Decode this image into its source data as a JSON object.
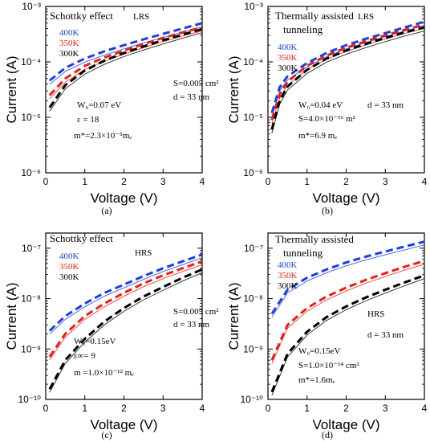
{
  "panels": [
    {
      "label": "(a)",
      "title": "Schottky effect",
      "state": "LRS",
      "xlabel": "Voltage (V)",
      "ylabel": "Current (A)",
      "legend": [
        {
          "text": "400K",
          "color": "#1f3fd6"
        },
        {
          "text": "350K",
          "color": "#e0221b"
        },
        {
          "text": "300K",
          "color": "#000000"
        }
      ],
      "params_top": [
        "S=0.005 cm²",
        "d = 33 nm"
      ],
      "params_bottom": [
        "W₀=0.07 eV",
        "ε = 18",
        "m*=2.3×10⁻⁵mₑ"
      ]
    },
    {
      "label": "(b)",
      "title": "Thermally assisted",
      "title2": "tunneling",
      "state": "LRS",
      "xlabel": "Voltage (V)",
      "ylabel": "Current (A)",
      "legend": [
        {
          "text": "400K",
          "color": "#1f3fd6"
        },
        {
          "text": "350K",
          "color": "#e0221b"
        },
        {
          "text": "300K",
          "color": "#000000"
        }
      ],
      "params_top": [
        "W₀=0.04 eV",
        "S=4.0×10⁻¹⁶ m²",
        "m*=6.9 mₑ"
      ],
      "params_bottom": [
        "d = 33 nm"
      ]
    },
    {
      "label": "(c)",
      "title": "Schottky effect",
      "state": "HRS",
      "xlabel": "Voltage (V)",
      "ylabel": "Current (A)",
      "legend": [
        {
          "text": "400K",
          "color": "#1f3fd6"
        },
        {
          "text": "350K",
          "color": "#e0221b"
        },
        {
          "text": "300K",
          "color": "#000000"
        }
      ],
      "params_top": [
        "S=0.005 cm²",
        "d = 33 nm"
      ],
      "params_bottom": [
        "W₀=0.15eV",
        "ε∞= 9",
        "m =1.0×10⁻¹² mₑ"
      ]
    },
    {
      "label": "(d)",
      "title": "Thermally assisted",
      "title2": "tunneling",
      "state": "HRS",
      "xlabel": "Voltage (V)",
      "ylabel": "Current (A)",
      "legend": [
        {
          "text": "400K",
          "color": "#1f3fd6"
        },
        {
          "text": "350K",
          "color": "#e0221b"
        },
        {
          "text": "300K",
          "color": "#000000"
        }
      ],
      "params_top": [
        "d = 33 nm"
      ],
      "params_bottom": [
        "W₀=0.15eV",
        "S=1.0×10⁻¹⁴ cm²",
        "m*=1.6mₑ"
      ]
    }
  ],
  "chart_data": [
    {
      "type": "line",
      "xlim": [
        0,
        4
      ],
      "ylim": [
        1e-06,
        0.001
      ],
      "yscale": "log",
      "xticks": [
        "0",
        "1",
        "2",
        "3",
        "4"
      ],
      "yticks": [
        "10⁻⁶",
        "10⁻⁵",
        "10⁻⁴",
        "10⁻³"
      ],
      "series": [
        {
          "name": "400K",
          "color": "#1f3fd6",
          "x": [
            0.1,
            0.5,
            1,
            1.5,
            2,
            2.5,
            3,
            3.5,
            4
          ],
          "y": [
            4.6e-05,
            7.8e-05,
            0.000115,
            0.000155,
            0.0002,
            0.000255,
            0.00032,
            0.0004,
            0.0005
          ]
        },
        {
          "name": "350K",
          "color": "#e0221b",
          "x": [
            0.1,
            0.5,
            1,
            1.5,
            2,
            2.5,
            3,
            3.5,
            4
          ],
          "y": [
            2.5e-05,
            5e-05,
            8.5e-05,
            0.00012,
            0.00016,
            0.00021,
            0.00027,
            0.00034,
            0.00042
          ]
        },
        {
          "name": "300K",
          "color": "#000000",
          "x": [
            0.1,
            0.5,
            1,
            1.5,
            2,
            2.5,
            3,
            3.5,
            4
          ],
          "y": [
            1.5e-05,
            3.8e-05,
            7e-05,
            0.000105,
            0.000145,
            0.00019,
            0.000245,
            0.00031,
            0.00039
          ]
        }
      ]
    },
    {
      "type": "line",
      "xlim": [
        0,
        4
      ],
      "ylim": [
        1e-06,
        0.001
      ],
      "yscale": "log",
      "xticks": [
        "0",
        "1",
        "2",
        "3",
        "4"
      ],
      "yticks": [
        "10⁻⁶",
        "10⁻⁵",
        "10⁻⁴",
        "10⁻³"
      ],
      "series": [
        {
          "name": "400K",
          "color": "#1f3fd6",
          "x": [
            0.1,
            0.3,
            0.5,
            1,
            1.5,
            2,
            2.5,
            3,
            3.5,
            4
          ],
          "y": [
            1.2e-05,
            3.5e-05,
            5.5e-05,
            9.5e-05,
            0.000145,
            0.0002,
            0.00026,
            0.00033,
            0.00042,
            0.00053
          ]
        },
        {
          "name": "350K",
          "color": "#e0221b",
          "x": [
            0.1,
            0.3,
            0.5,
            1,
            1.5,
            2,
            2.5,
            3,
            3.5,
            4
          ],
          "y": [
            9e-06,
            2.6e-05,
            4.4e-05,
            8.5e-05,
            0.00013,
            0.00018,
            0.000235,
            0.0003,
            0.00038,
            0.00047
          ]
        },
        {
          "name": "300K",
          "color": "#000000",
          "x": [
            0.1,
            0.3,
            0.5,
            1,
            1.5,
            2,
            2.5,
            3,
            3.5,
            4
          ],
          "y": [
            6e-06,
            2e-05,
            3.6e-05,
            7.2e-05,
            0.000115,
            0.00016,
            0.00021,
            0.00027,
            0.00034,
            0.00042
          ]
        }
      ]
    },
    {
      "type": "line",
      "xlim": [
        0,
        4
      ],
      "ylim": [
        1e-10,
        2e-07
      ],
      "yscale": "log",
      "xticks": [
        "0",
        "1",
        "2",
        "3",
        "4"
      ],
      "yticks": [
        "10⁻¹⁰",
        "10⁻⁹",
        "10⁻⁸",
        "10⁻⁷"
      ],
      "series": [
        {
          "name": "400K",
          "color": "#1f3fd6",
          "x": [
            0.1,
            0.5,
            1,
            1.5,
            2,
            2.5,
            3,
            3.5,
            4
          ],
          "y": [
            2.3e-09,
            4.5e-09,
            8e-09,
            1.3e-08,
            1.9e-08,
            2.8e-08,
            4e-08,
            5.5e-08,
            7.5e-08
          ]
        },
        {
          "name": "350K",
          "color": "#e0221b",
          "x": [
            0.1,
            0.5,
            1,
            1.5,
            2,
            2.5,
            3,
            3.5,
            4
          ],
          "y": [
            7e-10,
            2e-09,
            4.5e-09,
            8e-09,
            1.3e-08,
            2e-08,
            2.9e-08,
            4e-08,
            5.5e-08
          ]
        },
        {
          "name": "300K",
          "color": "#000000",
          "x": [
            0.1,
            0.5,
            1,
            1.5,
            2,
            2.5,
            3,
            3.5,
            4
          ],
          "y": [
            1.6e-10,
            6e-10,
            1.6e-09,
            3.5e-09,
            6.5e-09,
            1.1e-08,
            1.7e-08,
            2.6e-08,
            3.8e-08
          ]
        }
      ]
    },
    {
      "type": "line",
      "xlim": [
        0,
        4
      ],
      "ylim": [
        1e-10,
        2e-07
      ],
      "yscale": "log",
      "xticks": [
        "0",
        "1",
        "2",
        "3",
        "4"
      ],
      "yticks": [
        "10⁻¹⁰",
        "10⁻⁹",
        "10⁻⁸",
        "10⁻⁷"
      ],
      "series": [
        {
          "name": "400K",
          "color": "#1f3fd6",
          "x": [
            0.1,
            0.5,
            1,
            1.5,
            2,
            2.5,
            3,
            3.5,
            4
          ],
          "y": [
            5e-09,
            1.5e-08,
            2.6e-08,
            3.8e-08,
            5.2e-08,
            6.8e-08,
            8.6e-08,
            1.08e-07,
            1.35e-07
          ]
        },
        {
          "name": "350K",
          "color": "#e0221b",
          "x": [
            0.1,
            0.5,
            1,
            1.5,
            2,
            2.5,
            3,
            3.5,
            4
          ],
          "y": [
            6e-10,
            3e-09,
            6.5e-09,
            1.1e-08,
            1.65e-08,
            2.35e-08,
            3.2e-08,
            4.3e-08,
            5.6e-08
          ]
        },
        {
          "name": "300K",
          "color": "#000000",
          "x": [
            0.1,
            0.5,
            1,
            1.5,
            2,
            2.5,
            3,
            3.5,
            4
          ],
          "y": [
            1.4e-10,
            8e-10,
            2.2e-09,
            4.3e-09,
            7e-09,
            1.05e-08,
            1.5e-08,
            2.1e-08,
            2.9e-08
          ]
        }
      ]
    }
  ]
}
